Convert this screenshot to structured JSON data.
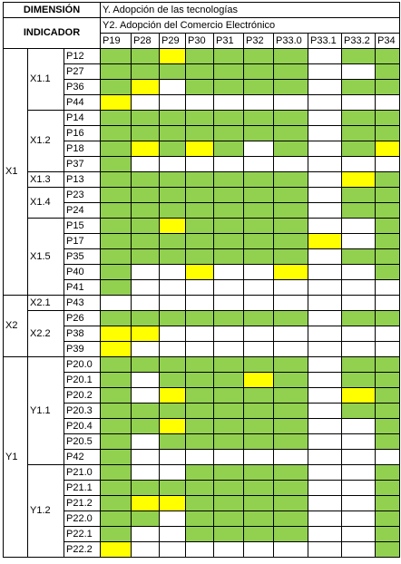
{
  "header": {
    "dimension_label": "DIMENSIÓN",
    "indicator_label": "INDICADOR",
    "y_title": "Y. Adopción de las tecnologías",
    "y2_title": "Y2. Adopción del Comercio Electrónico"
  },
  "columns": [
    "P19",
    "P28",
    "P29",
    "P30",
    "P31",
    "P32",
    "P33.0",
    "P33.1",
    "P33.2",
    "P34"
  ],
  "colors": {
    "green": "#92d050",
    "yellow": "#ffff00",
    "white": "#ffffff"
  },
  "legend_codes": {
    "G": "green",
    "Y": "yellow",
    "W": "white"
  },
  "dimensions": [
    {
      "label": "X1",
      "indicators": [
        {
          "label": "X1.1",
          "items": [
            {
              "label": "P12",
              "cells": "GGYGGGGWGG"
            },
            {
              "label": "P27",
              "cells": "GGGGGGGWWG"
            },
            {
              "label": "P36",
              "cells": "GYWGGGGWGG"
            },
            {
              "label": "P44",
              "cells": "YWWWWWWWWW"
            }
          ]
        },
        {
          "label": "X1.2",
          "items": [
            {
              "label": "P14",
              "cells": "GGGGGGGWGG"
            },
            {
              "label": "P16",
              "cells": "GGGGGGGWGG"
            },
            {
              "label": "P18",
              "cells": "GYGYGWGWGY"
            },
            {
              "label": "P37",
              "cells": "GWWWWWWWWW"
            }
          ]
        },
        {
          "label": "X1.3",
          "items": [
            {
              "label": "P13",
              "cells": "GGGGGGGWYG"
            }
          ]
        },
        {
          "label": "X1.4",
          "items": [
            {
              "label": "P23",
              "cells": "GGGGGGGWGG"
            },
            {
              "label": "P24",
              "cells": "GGGGGGGWGG"
            }
          ]
        },
        {
          "label": "X1.5",
          "items": [
            {
              "label": "P15",
              "cells": "GGYGGGGWWG"
            },
            {
              "label": "P17",
              "cells": "GGGGGGGYWG"
            },
            {
              "label": "P35",
              "cells": "GGGGGGGWGG"
            },
            {
              "label": "P40",
              "cells": "GWWYWWYWWG"
            },
            {
              "label": "P41",
              "cells": "GWWWWWWWWW"
            }
          ]
        }
      ]
    },
    {
      "label": "X2",
      "indicators": [
        {
          "label": "X2.1",
          "items": [
            {
              "label": "P43",
              "cells": "WWWWWWWWWW"
            }
          ]
        },
        {
          "label": "X2.2",
          "items": [
            {
              "label": "P26",
              "cells": "GGGGGGGWGG"
            },
            {
              "label": "P38",
              "cells": "YYWWWWWWWW"
            },
            {
              "label": "P39",
              "cells": "YWWWWWWWWW"
            }
          ]
        }
      ]
    },
    {
      "label": "Y1",
      "indicators": [
        {
          "label": "Y1.1",
          "items": [
            {
              "label": "P20.0",
              "cells": "GGGGGGGWGG"
            },
            {
              "label": "P20.1",
              "cells": "GWGGGYGWGG"
            },
            {
              "label": "P20.2",
              "cells": "GWYGGGGWYG"
            },
            {
              "label": "P20.3",
              "cells": "GGGGGGGWGG"
            },
            {
              "label": "P20.4",
              "cells": "GGYGGGGWWG"
            },
            {
              "label": "P20.5",
              "cells": "GWGGGGGWWG"
            },
            {
              "label": "P42",
              "cells": "GWWWWWWWWW"
            }
          ]
        },
        {
          "label": "Y1.2",
          "items": [
            {
              "label": "P21.0",
              "cells": "GWWGGGGWWG"
            },
            {
              "label": "P21.1",
              "cells": "GGGGGGGWWG"
            },
            {
              "label": "P21.2",
              "cells": "GYYGGGGWWG"
            },
            {
              "label": "P22.0",
              "cells": "GGWGGGGWWG"
            },
            {
              "label": "P22.1",
              "cells": "GWWGGGGWWG"
            },
            {
              "label": "P22.2",
              "cells": "YWWWWWWWWG"
            }
          ]
        }
      ]
    }
  ]
}
